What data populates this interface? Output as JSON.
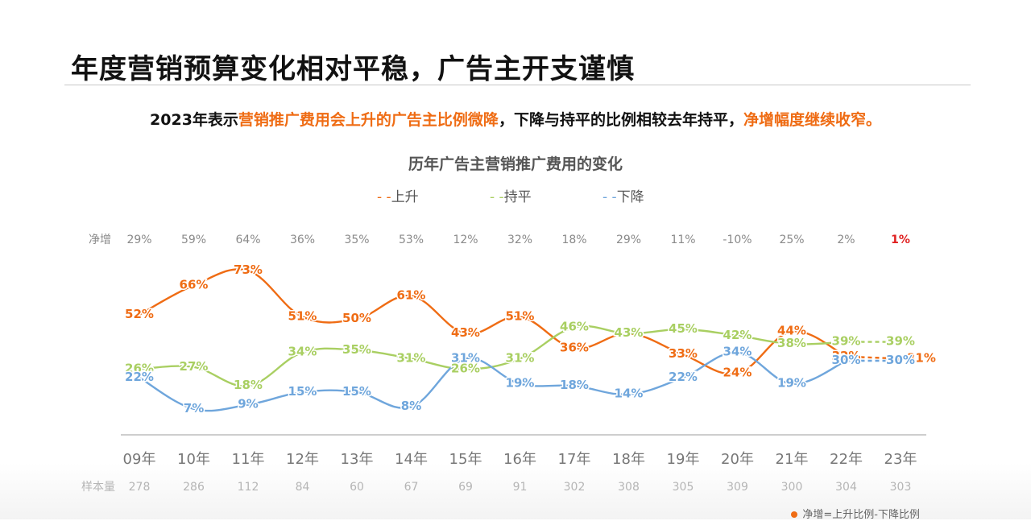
{
  "page": {
    "title": "年度营销预算变化相对平稳，广告主开支谨慎",
    "subtitle_parts": [
      {
        "text": "2023年表示",
        "highlight": false
      },
      {
        "text": "营销推广费用会上升的广告主比例微降",
        "highlight": true
      },
      {
        "text": "，下降与持平的比例相较去年持平，",
        "highlight": false
      },
      {
        "text": "净增幅度继续收窄。",
        "highlight": true
      }
    ],
    "footnote": "净增=上升比例-下降比例"
  },
  "colors": {
    "up": "#ef6c14",
    "flat": "#a9cf62",
    "down": "#6fa6dc",
    "highlight": "#ef6c14",
    "net_last": "#e02020",
    "gray_text": "#8a8a8a",
    "axis": "#bdbdbd"
  },
  "chart_data": {
    "type": "line",
    "title": "历年广告主营销推广费用的变化",
    "categories": [
      "09年",
      "10年",
      "11年",
      "12年",
      "13年",
      "14年",
      "15年",
      "16年",
      "17年",
      "18年",
      "19年",
      "20年",
      "21年",
      "22年",
      "23年"
    ],
    "series": [
      {
        "name": "上升",
        "key": "up",
        "values": [
          52,
          66,
          73,
          51,
          50,
          61,
          43,
          51,
          36,
          43,
          33,
          24,
          44,
          32,
          31
        ]
      },
      {
        "name": "持平",
        "key": "flat",
        "values": [
          26,
          27,
          18,
          34,
          35,
          31,
          26,
          31,
          46,
          43,
          45,
          42,
          38,
          39,
          39
        ]
      },
      {
        "name": "下降",
        "key": "down",
        "values": [
          22,
          7,
          9,
          15,
          15,
          8,
          31,
          19,
          18,
          14,
          22,
          34,
          19,
          30,
          30
        ]
      }
    ],
    "legend_prefix": "- -",
    "legend_position": "top-center",
    "net_label": "净增",
    "net_values": [
      "29%",
      "59%",
      "64%",
      "36%",
      "35%",
      "53%",
      "12%",
      "32%",
      "18%",
      "29%",
      "11%",
      "-10%",
      "25%",
      "2%",
      "1%"
    ],
    "sample_label": "样本量",
    "sample_sizes": [
      "278",
      "286",
      "112",
      "84",
      "60",
      "67",
      "69",
      "91",
      "302",
      "308",
      "305",
      "309",
      "300",
      "304",
      "303"
    ],
    "value_suffix": "%",
    "last_segment_dashed": true
  }
}
